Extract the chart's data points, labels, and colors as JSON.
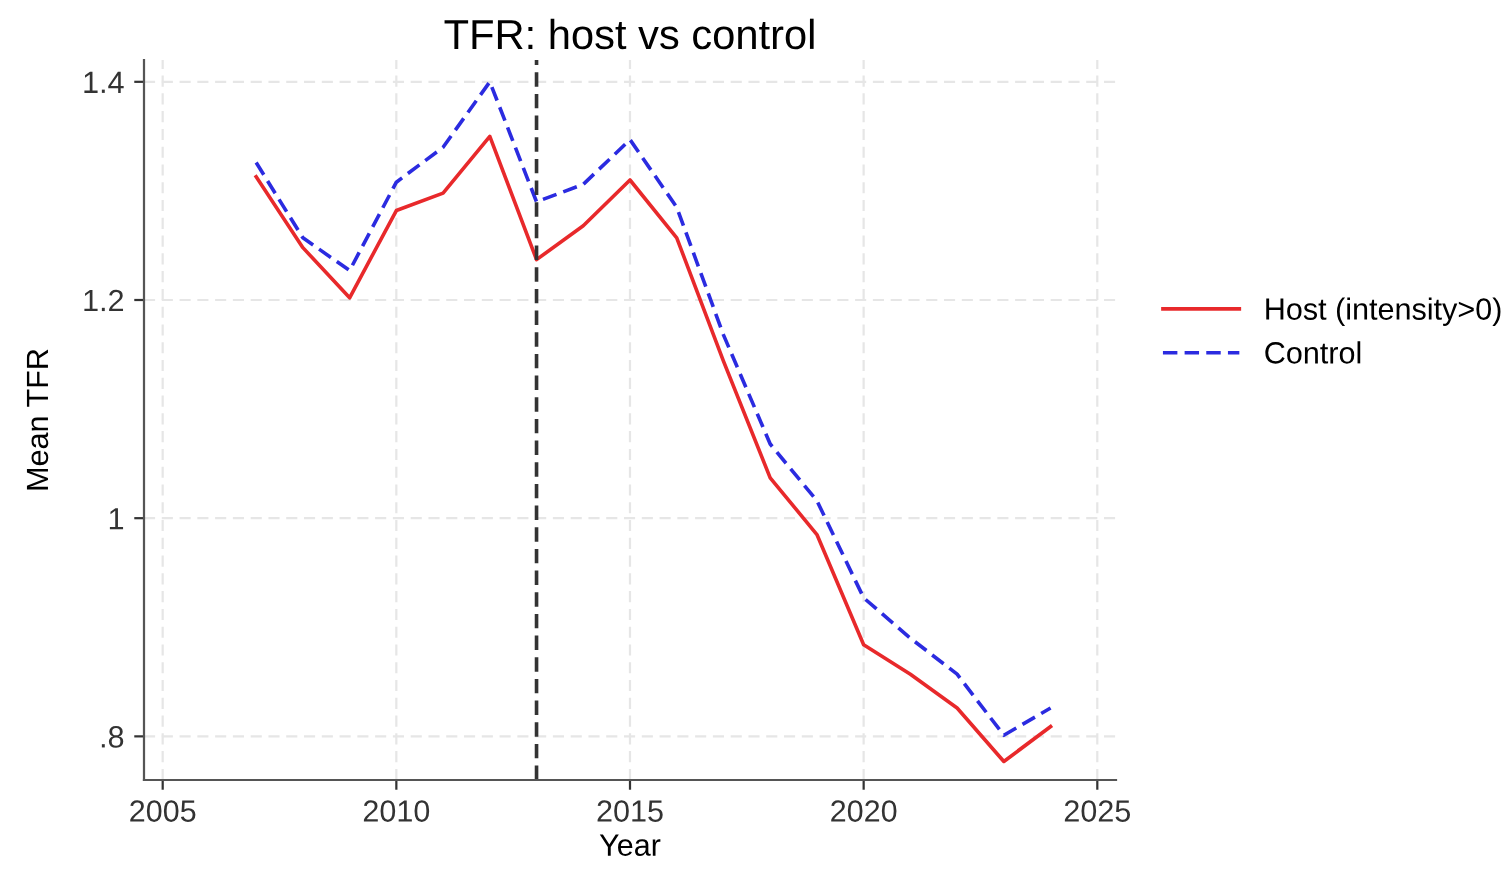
{
  "chart_data": {
    "type": "line",
    "title": "TFR: host vs control",
    "xlabel": "Year",
    "ylabel": "Mean TFR",
    "x": [
      2007,
      2008,
      2009,
      2010,
      2011,
      2012,
      2013,
      2014,
      2015,
      2016,
      2017,
      2018,
      2019,
      2020,
      2021,
      2022,
      2023,
      2024
    ],
    "series": [
      {
        "name": "Host (intensity>0)",
        "color": "#e8292b",
        "line_style": "solid",
        "values": [
          1.313,
          1.248,
          1.202,
          1.282,
          1.298,
          1.35,
          1.237,
          1.268,
          1.31,
          1.257,
          1.144,
          1.037,
          0.985,
          0.884,
          0.857,
          0.826,
          0.777,
          0.809
        ]
      },
      {
        "name": "Control",
        "color": "#2b2be0",
        "line_style": "dashed",
        "values": [
          1.326,
          1.257,
          1.227,
          1.308,
          1.34,
          1.4,
          1.29,
          1.306,
          1.347,
          1.285,
          1.168,
          1.068,
          1.016,
          0.927,
          0.89,
          0.857,
          0.801,
          0.826
        ]
      }
    ],
    "xlim": [
      2004.6,
      2025.4
    ],
    "xticks": [
      2005,
      2010,
      2015,
      2020,
      2025
    ],
    "ylim": [
      0.76,
      1.42
    ],
    "yticks": [
      {
        "value": 0.8,
        "label": ".8"
      },
      {
        "value": 1,
        "label": "1"
      },
      {
        "value": 1.2,
        "label": "1.2"
      },
      {
        "value": 1.4,
        "label": "1.4"
      }
    ],
    "ref_lines": [
      {
        "axis": "x",
        "value": 2013,
        "color": "#333333",
        "line_style": "dashed"
      }
    ],
    "grid": true,
    "legend": "right",
    "marker": "none"
  }
}
